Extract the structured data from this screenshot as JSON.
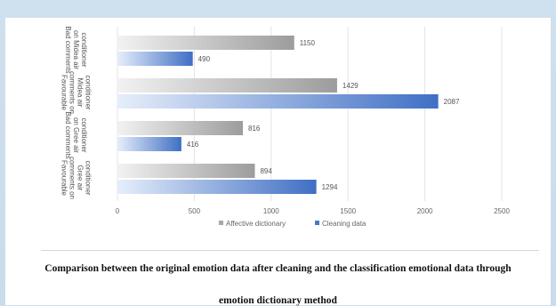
{
  "chart_data": {
    "type": "bar",
    "orientation": "horizontal",
    "categories": [
      "Bad comments on Midea air conditioner",
      "Favourable comments on Midea air conditioner",
      "Bad comments on Gree air conditioner",
      "Favourable comments on Gree air conditioner"
    ],
    "series": [
      {
        "name": "Affective dictionary",
        "values": [
          1150,
          1429,
          816,
          894
        ],
        "color": "#a8a8a8"
      },
      {
        "name": "Cleaning data",
        "values": [
          490,
          2087,
          416,
          1294
        ],
        "color": "#4a78c8"
      }
    ],
    "xlim": [
      0,
      2500
    ],
    "xticks": [
      "0",
      "500",
      "1000",
      "1500",
      "2000",
      "2500"
    ],
    "legend_position": "bottom",
    "grid": true
  },
  "caption": {
    "line1": "Comparison between the original emotion data after cleaning and the classification emotional data through",
    "line2": "emotion dictionary method"
  }
}
